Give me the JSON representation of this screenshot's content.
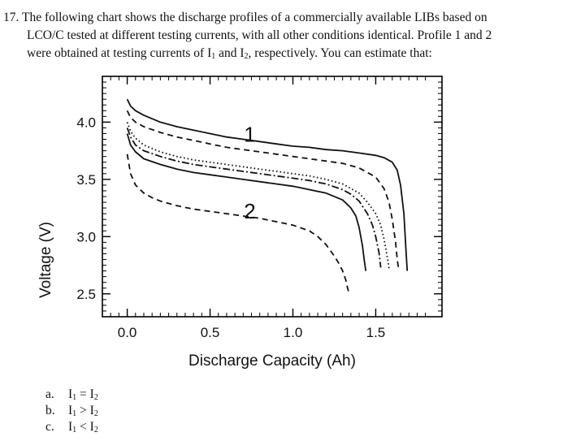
{
  "question": {
    "number": "17.",
    "line1": "The following chart shows the discharge profiles of a commercially available LIBs based on",
    "line2": "LCO/C tested at different testing currents, with all other conditions identical. Profile 1 and 2",
    "line3_before": "were obtained at testing currents of I",
    "line3_sub1": "1",
    "line3_mid": " and I",
    "line3_sub2": "2",
    "line3_after": ", respectively. You can estimate that:"
  },
  "chart_data": {
    "type": "line",
    "xlabel": "Discharge Capacity (Ah)",
    "ylabel": "Voltage (V)",
    "xlim": [
      -0.15,
      1.9
    ],
    "ylim": [
      2.3,
      4.4
    ],
    "x_ticks": [
      "0.0",
      "0.5",
      "1.0",
      "1.5"
    ],
    "y_ticks": [
      "2.5",
      "3.0",
      "3.5",
      "4.0"
    ],
    "x_tick_values": [
      0.0,
      0.5,
      1.0,
      1.5
    ],
    "y_tick_values": [
      2.5,
      3.0,
      3.5,
      4.0
    ],
    "annotations": [
      {
        "text": "1",
        "x": 0.74,
        "y": 3.83
      },
      {
        "text": "2",
        "x": 0.74,
        "y": 3.16
      }
    ],
    "series": [
      {
        "style": "solid",
        "x": [
          0.0,
          0.02,
          0.05,
          0.1,
          0.2,
          0.3,
          0.4,
          0.5,
          0.6,
          0.7,
          0.8,
          0.9,
          1.0,
          1.1,
          1.2,
          1.3,
          1.4,
          1.5,
          1.55,
          1.6,
          1.63,
          1.65,
          1.67,
          1.68,
          1.69
        ],
        "y": [
          4.2,
          4.14,
          4.1,
          4.06,
          4.0,
          3.96,
          3.93,
          3.9,
          3.87,
          3.85,
          3.83,
          3.81,
          3.79,
          3.78,
          3.76,
          3.75,
          3.73,
          3.71,
          3.69,
          3.65,
          3.58,
          3.45,
          3.2,
          2.95,
          2.7
        ]
      },
      {
        "style": "dashed",
        "x": [
          0.0,
          0.02,
          0.05,
          0.1,
          0.2,
          0.3,
          0.4,
          0.5,
          0.6,
          0.7,
          0.8,
          0.9,
          1.0,
          1.1,
          1.2,
          1.3,
          1.4,
          1.5,
          1.55,
          1.58,
          1.6,
          1.62,
          1.63,
          1.64
        ],
        "y": [
          4.1,
          4.04,
          4.0,
          3.96,
          3.91,
          3.87,
          3.84,
          3.81,
          3.78,
          3.76,
          3.74,
          3.72,
          3.7,
          3.68,
          3.66,
          3.64,
          3.6,
          3.52,
          3.42,
          3.3,
          3.15,
          2.95,
          2.8,
          2.7
        ]
      },
      {
        "style": "dotted",
        "x": [
          0.0,
          0.02,
          0.05,
          0.1,
          0.2,
          0.3,
          0.4,
          0.5,
          0.6,
          0.7,
          0.8,
          0.9,
          1.0,
          1.1,
          1.2,
          1.3,
          1.4,
          1.45,
          1.5,
          1.53,
          1.55,
          1.57,
          1.58
        ],
        "y": [
          4.0,
          3.92,
          3.86,
          3.8,
          3.74,
          3.7,
          3.67,
          3.65,
          3.63,
          3.61,
          3.59,
          3.57,
          3.55,
          3.53,
          3.5,
          3.46,
          3.38,
          3.3,
          3.2,
          3.1,
          2.98,
          2.82,
          2.72
        ]
      },
      {
        "style": "dashdot",
        "x": [
          0.0,
          0.02,
          0.05,
          0.1,
          0.2,
          0.3,
          0.4,
          0.5,
          0.6,
          0.7,
          0.8,
          0.9,
          1.0,
          1.1,
          1.2,
          1.3,
          1.35,
          1.4,
          1.45,
          1.48,
          1.5,
          1.52,
          1.53
        ],
        "y": [
          3.95,
          3.87,
          3.8,
          3.75,
          3.7,
          3.66,
          3.63,
          3.61,
          3.59,
          3.57,
          3.55,
          3.53,
          3.51,
          3.49,
          3.46,
          3.41,
          3.37,
          3.31,
          3.2,
          3.1,
          3.0,
          2.86,
          2.73
        ]
      },
      {
        "style": "solid",
        "x": [
          0.0,
          0.02,
          0.05,
          0.1,
          0.2,
          0.3,
          0.4,
          0.5,
          0.6,
          0.7,
          0.8,
          0.9,
          1.0,
          1.1,
          1.2,
          1.3,
          1.35,
          1.38,
          1.4,
          1.42,
          1.43,
          1.44
        ],
        "y": [
          3.9,
          3.8,
          3.74,
          3.68,
          3.63,
          3.59,
          3.56,
          3.54,
          3.52,
          3.5,
          3.48,
          3.46,
          3.44,
          3.41,
          3.38,
          3.32,
          3.25,
          3.18,
          3.08,
          2.92,
          2.8,
          2.7
        ]
      },
      {
        "style": "dashed",
        "x": [
          0.0,
          0.02,
          0.05,
          0.1,
          0.15,
          0.2,
          0.3,
          0.4,
          0.5,
          0.6,
          0.7,
          0.8,
          0.9,
          1.0,
          1.1,
          1.15,
          1.2,
          1.25,
          1.28,
          1.3,
          1.32,
          1.33,
          1.34
        ],
        "y": [
          3.72,
          3.55,
          3.45,
          3.38,
          3.34,
          3.31,
          3.27,
          3.24,
          3.22,
          3.2,
          3.18,
          3.16,
          3.13,
          3.1,
          3.05,
          3.0,
          2.93,
          2.83,
          2.76,
          2.7,
          2.62,
          2.55,
          2.5
        ]
      }
    ]
  },
  "answers": [
    {
      "letter": "a.",
      "left": "I",
      "left_sub": "1",
      "op": " = ",
      "right": "I",
      "right_sub": "2"
    },
    {
      "letter": "b.",
      "left": "I",
      "left_sub": "1",
      "op": " > ",
      "right": "I",
      "right_sub": "2"
    },
    {
      "letter": "c.",
      "left": "I",
      "left_sub": "1",
      "op": " < ",
      "right": "I",
      "right_sub": "2"
    }
  ]
}
